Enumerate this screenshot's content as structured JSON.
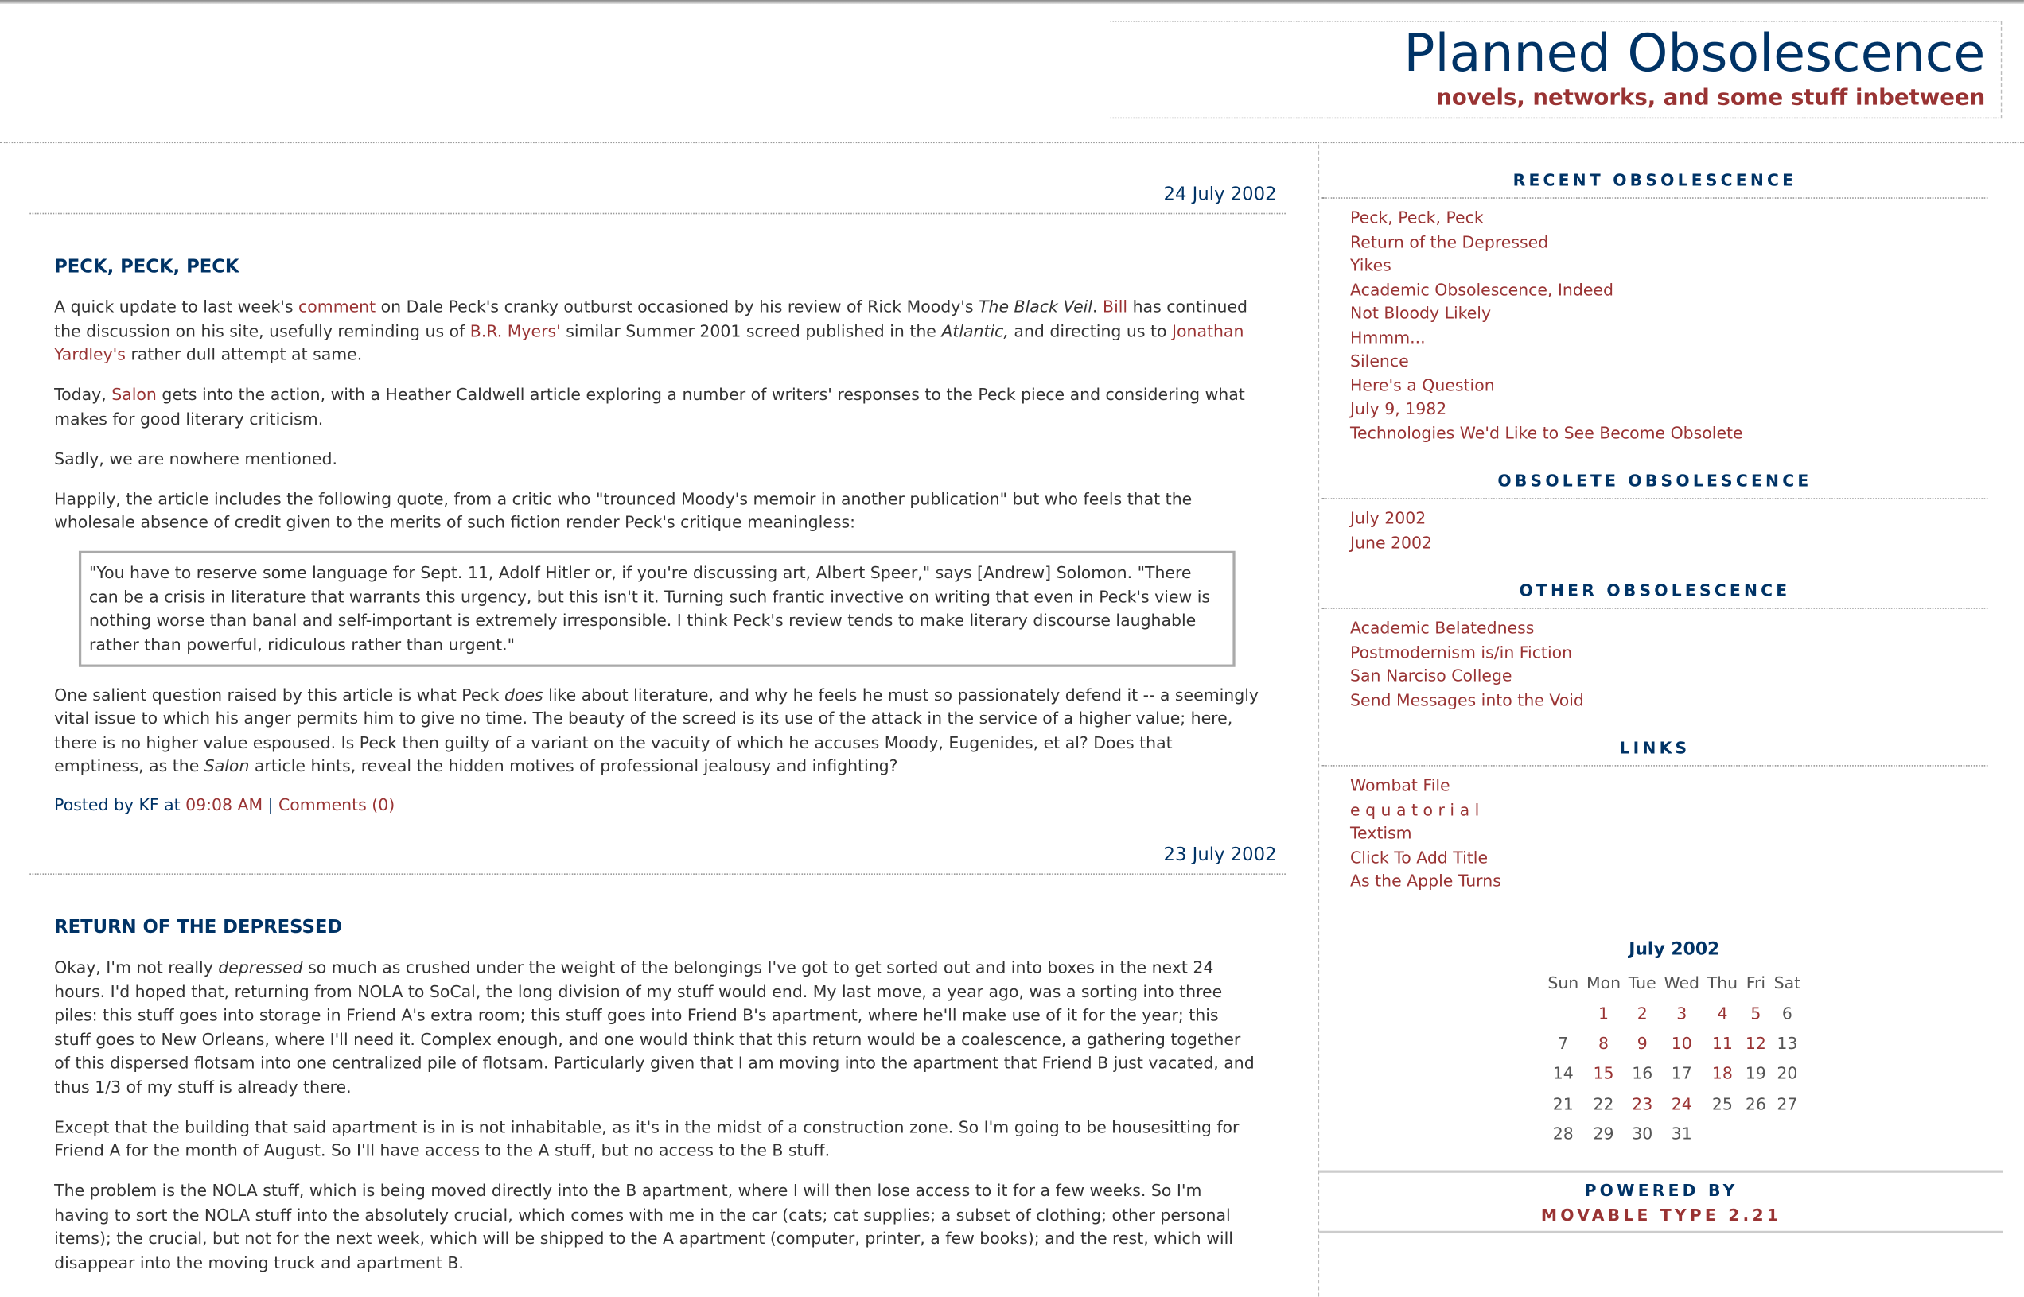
{
  "header": {
    "title": "Planned Obsolescence",
    "tagline": "novels, networks, and some stuff inbetween"
  },
  "colors": {
    "navy": "#003366",
    "link": "#993333",
    "text": "#333333"
  },
  "posts": [
    {
      "date": "24 July 2002",
      "title": "PECK, PECK, PECK",
      "p1": {
        "a": "A quick update to last week's ",
        "l1": "comment",
        "b": " on Dale Peck's cranky outburst occasioned by his review of Rick Moody's ",
        "i1": "The Black Veil",
        "c": ". ",
        "l2": "Bill",
        "d": " has continued the discussion on his site, usefully reminding us of ",
        "l3": "B.R. Myers'",
        "e": " similar Summer 2001 screed published in the ",
        "i2": "Atlantic,",
        "f": " and directing us to ",
        "l4": "Jonathan Yardley's",
        "g": " rather dull attempt at same."
      },
      "p2": {
        "a": "Today, ",
        "l1": "Salon",
        "b": " gets into the action, with a Heather Caldwell article exploring a number of writers' responses to the Peck piece and considering what makes for good literary criticism."
      },
      "p3": "Sadly, we are nowhere mentioned.",
      "p4": "Happily, the article includes the following quote, from a critic who \"trounced Moody's memoir in another publication\" but who feels that the wholesale absence of credit given to the merits of such fiction render Peck's critique meaningless:",
      "quote": "\"You have to reserve some language for Sept. 11, Adolf Hitler or, if you're discussing art, Albert Speer,\" says [Andrew] Solomon. \"There can be a crisis in literature that warrants this urgency, but this isn't it. Turning such frantic invective on writing that even in Peck's view is nothing worse than banal and self-important is extremely irresponsible. I think Peck's review tends to make literary discourse laughable rather than powerful, ridiculous rather than urgent.\"",
      "p5": {
        "a": "One salient question raised by this article is what Peck ",
        "i1": "does",
        "b": " like about literature, and why he feels he must so passionately defend it -- a seemingly vital issue to which his anger permits him to give no time. The beauty of the screed is its use of the attack in the service of a higher value; here, there is no higher value espoused. Is Peck then guilty of a variant on the vacuity of which he accuses Moody, Eugenides, et al? Does that emptiness, as the ",
        "i2": "Salon",
        "c": " article hints, reveal the hidden motives of professional jealousy and infighting?"
      },
      "posted": {
        "prefix": "Posted by KF at ",
        "time": "09:08 AM",
        "sep": " | ",
        "comments": "Comments (0)"
      }
    },
    {
      "date": "23 July 2002",
      "title": "RETURN OF THE DEPRESSED",
      "p1": {
        "a": "Okay, I'm not really ",
        "i1": "depressed",
        "b": " so much as crushed under the weight of the belongings I've got to get sorted out and into boxes in the next 24 hours. I'd hoped that, returning from NOLA to SoCal, the long division of my stuff would end. My last move, a year ago, was a sorting into three piles: this stuff goes into storage in Friend A's extra room; this stuff goes into Friend B's apartment, where he'll make use of it for the year; this stuff goes to New Orleans, where I'll need it. Complex enough, and one would think that this return would be a coalescence, a gathering together of this dispersed flotsam into one centralized pile of flotsam. Particularly given that I am moving into the apartment that Friend B just vacated, and thus 1/3 of my stuff is already there."
      },
      "p2": "Except that the building that said apartment is in is not inhabitable, as it's in the midst of a construction zone. So I'm going to be housesitting for Friend A for the month of August. So I'll have access to the A stuff, but no access to the B stuff.",
      "p3": "The problem is the NOLA stuff, which is being moved directly into the B apartment, where I will then lose access to it for a few weeks. So I'm having to sort the NOLA stuff into the absolutely crucial, which comes with me in the car (cats; cat supplies; a subset of clothing; other personal items); the crucial, but not for the next week, which will be shipped to the A apartment (computer, printer, a few books); and the rest, which will disappear into the moving truck and apartment B."
    }
  ],
  "sidebar": {
    "recent": {
      "heading": "RECENT OBSOLESCENCE",
      "items": [
        "Peck, Peck, Peck",
        "Return of the Depressed",
        "Yikes",
        "Academic Obsolescence, Indeed",
        "Not Bloody Likely",
        "Hmmm...",
        "Silence",
        "Here's a Question",
        "July 9, 1982",
        "Technologies We'd Like to See Become Obsolete"
      ]
    },
    "obsolete": {
      "heading": "OBSOLETE OBSOLESCENCE",
      "items": [
        "July 2002",
        "June 2002"
      ]
    },
    "other": {
      "heading": "OTHER OBSOLESCENCE",
      "items": [
        "Academic Belatedness",
        "Postmodernism is/in Fiction",
        "San Narciso College",
        "Send Messages into the Void"
      ]
    },
    "links": {
      "heading": "LINKS",
      "items": [
        "Wombat File",
        "e q u a t o r i a l",
        "Textism",
        "Click To Add Title",
        "As the Apple Turns"
      ]
    }
  },
  "calendar": {
    "title": "July 2002",
    "weekdays": [
      "Sun",
      "Mon",
      "Tue",
      "Wed",
      "Thu",
      "Fri",
      "Sat"
    ],
    "first_weekday": 1,
    "days": 31,
    "linked_days": [
      1,
      2,
      3,
      4,
      5,
      8,
      9,
      10,
      11,
      12,
      15,
      18,
      23,
      24
    ]
  },
  "powered": {
    "line1": "POWERED BY",
    "line2": "MOVABLE TYPE 2.21"
  }
}
